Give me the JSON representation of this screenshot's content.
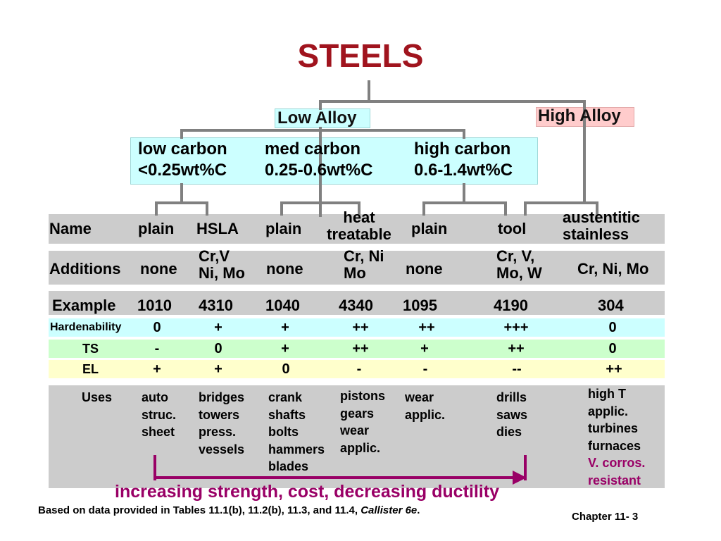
{
  "title": "STEELS",
  "branches": {
    "low": "Low Alloy",
    "high": "High Alloy"
  },
  "carbon": [
    {
      "name": "low carbon",
      "range": "<0.25wt%C"
    },
    {
      "name": "med carbon",
      "range": "0.25-0.6wt%C"
    },
    {
      "name": "high carbon",
      "range": "0.6-1.4wt%C"
    }
  ],
  "rows": {
    "name": "Name",
    "additions": "Additions",
    "example": "Example",
    "hardenability": "Hardenability",
    "ts": "TS",
    "el": "EL",
    "uses": "Uses"
  },
  "columns": [
    {
      "name": [
        "plain"
      ],
      "additions": [
        "none"
      ],
      "example": "1010",
      "hardenability": "0",
      "ts": "-",
      "el": "+",
      "uses": [
        "auto",
        "struc.",
        "sheet"
      ]
    },
    {
      "name": [
        "HSLA"
      ],
      "additions": [
        "Cr,V",
        "Ni, Mo"
      ],
      "example": "4310",
      "hardenability": "+",
      "ts": "0",
      "el": "+",
      "uses": [
        "bridges",
        "towers",
        "press.",
        "vessels"
      ]
    },
    {
      "name": [
        "plain"
      ],
      "additions": [
        "none"
      ],
      "example": "1040",
      "hardenability": "+",
      "ts": "+",
      "el": "0",
      "uses": [
        "crank",
        "shafts",
        "bolts",
        "hammers",
        "blades"
      ]
    },
    {
      "name": [
        "heat",
        "treatable"
      ],
      "additions": [
        "Cr, Ni",
        "Mo"
      ],
      "example": "4340",
      "hardenability": "++",
      "ts": "++",
      "el": "-",
      "uses": [
        "pistons",
        "gears",
        "wear",
        "applic."
      ]
    },
    {
      "name": [
        "plain"
      ],
      "additions": [
        "none"
      ],
      "example": "1095",
      "hardenability": "++",
      "ts": "+",
      "el": "-",
      "uses": [
        "wear",
        "applic."
      ]
    },
    {
      "name": [
        "tool"
      ],
      "additions": [
        "Cr, V,",
        "Mo, W"
      ],
      "example": "4190",
      "hardenability": "+++",
      "ts": "++",
      "el": "--",
      "uses": [
        "drills",
        "saws",
        "dies"
      ]
    },
    {
      "name": [
        "austentitic",
        "stainless"
      ],
      "additions": [
        "Cr, Ni, Mo"
      ],
      "example": "304",
      "hardenability": "0",
      "ts": "0",
      "el": "++",
      "uses": [
        "high T",
        "applic.",
        "turbines",
        "furnaces"
      ],
      "uses_highlight": [
        "V. corros.",
        "resistant"
      ]
    }
  ],
  "arrow_label": "increasing strength, cost, decreasing ductility",
  "footnote": {
    "text": "Based on data provided in Tables 11.1(b), 11.2(b), 11.3, and 11.4, ",
    "italic": "Callister 6e",
    "end": "."
  },
  "chapter": "Chapter 11- 3",
  "colors": {
    "title": "#a0141e",
    "low_alloy_bg": "#ccffff",
    "high_alloy_bg": "#ffcccc",
    "row_gray": "#cccccc",
    "hardenability_bg": "#ccffff",
    "ts_bg": "#ccffcc",
    "el_bg": "#ffffcc",
    "arrow": "#990066",
    "connector": "#808080"
  }
}
